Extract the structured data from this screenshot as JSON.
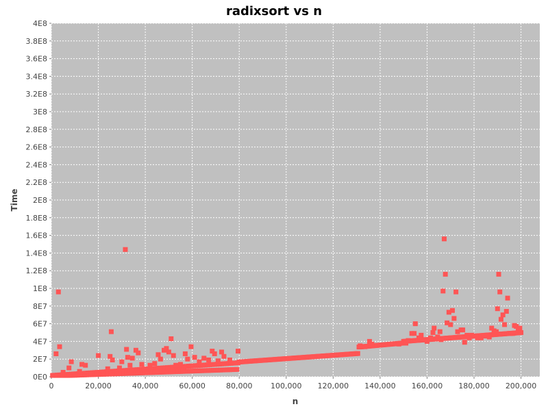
{
  "chart_data": {
    "type": "scatter",
    "title": "radixsort vs n",
    "xlabel": "n",
    "ylabel": "Time",
    "xlim": [
      0,
      208000
    ],
    "ylim": [
      0,
      400000000
    ],
    "x_ticks": [
      "0",
      "20,000",
      "40,000",
      "60,000",
      "80,000",
      "100,000",
      "120,000",
      "140,000",
      "160,000",
      "180,000",
      "200,000"
    ],
    "x_tick_values": [
      0,
      20000,
      40000,
      60000,
      80000,
      100000,
      120000,
      140000,
      160000,
      180000,
      200000
    ],
    "y_ticks": [
      "0E0",
      "2E7",
      "4E7",
      "6E7",
      "8E7",
      "1E8",
      "1.2E8",
      "1.4E8",
      "1.6E8",
      "1.8E8",
      "2E8",
      "2.2E8",
      "2.4E8",
      "2.6E8",
      "2.8E8",
      "3E8",
      "3.2E8",
      "3.4E8",
      "3.6E8",
      "3.8E8",
      "4E8"
    ],
    "y_tick_values": [
      0,
      20000000,
      40000000,
      60000000,
      80000000,
      100000000,
      120000000,
      140000000,
      160000000,
      180000000,
      200000000,
      220000000,
      240000000,
      260000000,
      280000000,
      300000000,
      320000000,
      340000000,
      360000000,
      380000000,
      400000000
    ],
    "grid": true,
    "legend": "none",
    "colors": {
      "plot_bg": "#c0c0c0",
      "grid": "#ffffff",
      "point": "#ff5555"
    },
    "outliers": [
      [
        2000,
        26000000
      ],
      [
        3000,
        96000000
      ],
      [
        3500,
        34000000
      ],
      [
        5000,
        5000000
      ],
      [
        7500,
        10000000
      ],
      [
        8500,
        17000000
      ],
      [
        12000,
        6000000
      ],
      [
        13000,
        14000000
      ],
      [
        14500,
        13000000
      ],
      [
        20000,
        24000000
      ],
      [
        24000,
        9000000
      ],
      [
        25000,
        23000000
      ],
      [
        25500,
        51000000
      ],
      [
        26000,
        19000000
      ],
      [
        29000,
        10000000
      ],
      [
        30000,
        17000000
      ],
      [
        31500,
        144000000
      ],
      [
        32000,
        31000000
      ],
      [
        32500,
        22000000
      ],
      [
        33500,
        13000000
      ],
      [
        34500,
        21000000
      ],
      [
        36000,
        30000000
      ],
      [
        37000,
        27000000
      ],
      [
        38500,
        14000000
      ],
      [
        42000,
        13000000
      ],
      [
        44000,
        15000000
      ],
      [
        45500,
        25000000
      ],
      [
        46500,
        20000000
      ],
      [
        48000,
        30000000
      ],
      [
        49000,
        32000000
      ],
      [
        50000,
        28000000
      ],
      [
        51000,
        43000000
      ],
      [
        52000,
        24000000
      ],
      [
        53000,
        13000000
      ],
      [
        55000,
        14000000
      ],
      [
        57000,
        26000000
      ],
      [
        58000,
        20000000
      ],
      [
        59500,
        34000000
      ],
      [
        61000,
        22000000
      ],
      [
        63000,
        17000000
      ],
      [
        65000,
        21000000
      ],
      [
        67000,
        19000000
      ],
      [
        68500,
        29000000
      ],
      [
        69500,
        26000000
      ],
      [
        71000,
        18000000
      ],
      [
        72500,
        28000000
      ],
      [
        73500,
        23000000
      ],
      [
        76000,
        19000000
      ],
      [
        79500,
        29000000
      ],
      [
        131500,
        35000000
      ],
      [
        133500,
        34000000
      ],
      [
        135500,
        40000000
      ],
      [
        136500,
        37000000
      ],
      [
        148000,
        37000000
      ],
      [
        151000,
        38000000
      ],
      [
        152000,
        41000000
      ],
      [
        153500,
        49000000
      ],
      [
        154500,
        49000000
      ],
      [
        155000,
        60000000
      ],
      [
        156500,
        44000000
      ],
      [
        157500,
        47000000
      ],
      [
        158500,
        42000000
      ],
      [
        160000,
        40000000
      ],
      [
        161500,
        44000000
      ],
      [
        162500,
        50000000
      ],
      [
        163000,
        55000000
      ],
      [
        164500,
        45000000
      ],
      [
        165500,
        51000000
      ],
      [
        166000,
        42000000
      ],
      [
        166800,
        97000000
      ],
      [
        167300,
        156000000
      ],
      [
        167800,
        116000000
      ],
      [
        168500,
        61000000
      ],
      [
        169300,
        73000000
      ],
      [
        170000,
        59000000
      ],
      [
        170800,
        75000000
      ],
      [
        171500,
        66000000
      ],
      [
        172300,
        96000000
      ],
      [
        173000,
        51000000
      ],
      [
        173800,
        45000000
      ],
      [
        174500,
        53000000
      ],
      [
        175200,
        53000000
      ],
      [
        176000,
        39000000
      ],
      [
        177000,
        47000000
      ],
      [
        178000,
        44000000
      ],
      [
        179000,
        47000000
      ],
      [
        181500,
        44000000
      ],
      [
        183000,
        44000000
      ],
      [
        184500,
        46000000
      ],
      [
        186500,
        45000000
      ],
      [
        187500,
        55000000
      ],
      [
        188500,
        52000000
      ],
      [
        189500,
        51000000
      ],
      [
        190000,
        77000000
      ],
      [
        190500,
        116000000
      ],
      [
        191000,
        96000000
      ],
      [
        191500,
        65000000
      ],
      [
        192300,
        70000000
      ],
      [
        193000,
        59000000
      ],
      [
        193800,
        74000000
      ],
      [
        194300,
        89000000
      ],
      [
        195000,
        49000000
      ],
      [
        195800,
        49000000
      ],
      [
        196500,
        49000000
      ],
      [
        197200,
        58000000
      ],
      [
        198000,
        57000000
      ],
      [
        198800,
        53000000
      ],
      [
        199500,
        55000000
      ]
    ]
  }
}
